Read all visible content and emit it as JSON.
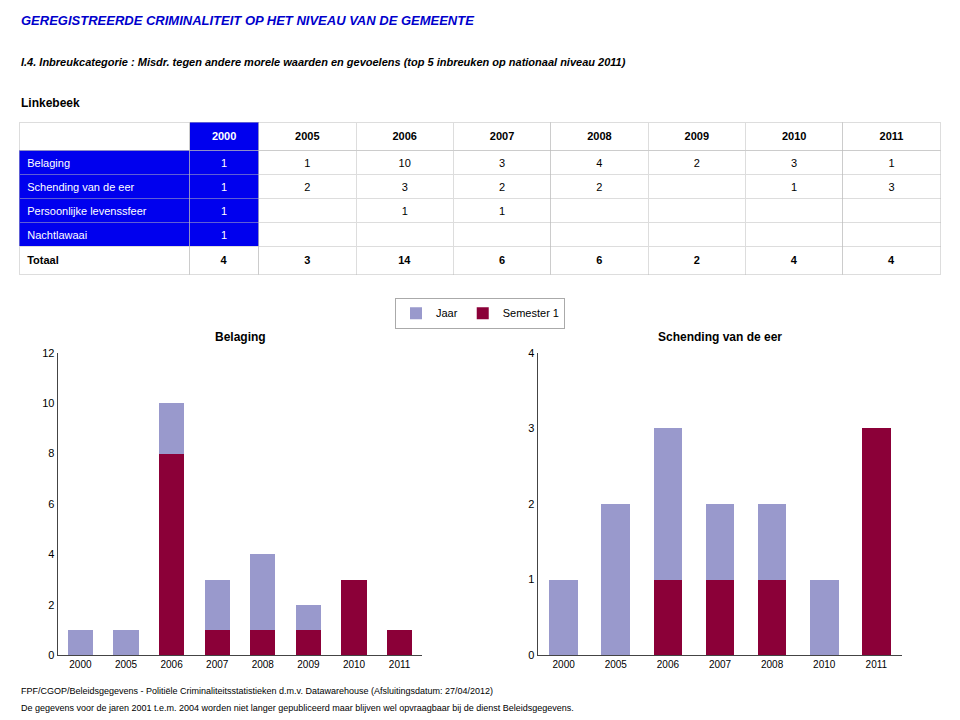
{
  "title": "GEREGISTREERDE CRIMINALITEIT OP HET NIVEAU VAN DE GEMEENTE",
  "subtitle": "I.4. Inbreukcategorie : Misdr. tegen andere morele waarden en gevoelens (top 5 inbreuken op nationaal niveau 2011)",
  "location": "Linkebeek",
  "table": {
    "rows": [
      "Belaging",
      "Schending van de eer",
      "Persoonlijke levenssfeer",
      "Nachtlawaai",
      "Totaal"
    ],
    "cols": [
      "2000",
      "2005",
      "2006",
      "2007",
      "2008",
      "2009",
      "2010",
      "2011"
    ],
    "values": [
      [
        1,
        1,
        10,
        3,
        4,
        2,
        3,
        1
      ],
      [
        1,
        2,
        3,
        2,
        2,
        null,
        1,
        3
      ],
      [
        1,
        null,
        1,
        1,
        null,
        null,
        null,
        null
      ],
      [
        1,
        null,
        null,
        null,
        null,
        null,
        null,
        null
      ],
      [
        4,
        3,
        14,
        6,
        6,
        2,
        4,
        4
      ]
    ],
    "color": "#0000ee"
  },
  "chart_data": [
    {
      "type": "bar",
      "title": "Belaging",
      "categories": [
        "2000",
        "2005",
        "2006",
        "2007",
        "2008",
        "2009",
        "2010",
        "2011"
      ],
      "series": [
        {
          "name": "Semester 1",
          "color": "#8b0038",
          "values": [
            0,
            0,
            8,
            1,
            1,
            1,
            3,
            1
          ]
        },
        {
          "name": "Jaar",
          "color": "#9999cc",
          "values": [
            1,
            1,
            2,
            2,
            3,
            1,
            0,
            0
          ]
        }
      ],
      "stacked": true,
      "ylim": [
        0,
        12
      ],
      "yticks": [
        0,
        2,
        4,
        6,
        8,
        10,
        12
      ],
      "grid": false,
      "legend": "top"
    },
    {
      "type": "bar",
      "title": "Schending van de eer",
      "categories": [
        "2000",
        "2005",
        "2006",
        "2007",
        "2008",
        "2010",
        "2011"
      ],
      "series": [
        {
          "name": "Semester 1",
          "color": "#8b0038",
          "values": [
            0,
            0,
            1,
            1,
            1,
            0,
            3
          ]
        },
        {
          "name": "Jaar",
          "color": "#9999cc",
          "values": [
            1,
            2,
            2,
            1,
            1,
            1,
            0
          ]
        }
      ],
      "stacked": true,
      "ylim": [
        0,
        4
      ],
      "yticks": [
        0,
        1,
        2,
        3,
        4
      ],
      "grid": false
    }
  ],
  "footer": [
    "FPF/CGOP/Beleidsgegevens - Politiële Criminaliteitsstatistieken d.m.v. Datawarehouse (Afsluitingsdatum: 27/04/2012)",
    "De gegevens voor de jaren 2001 t.e.m. 2004 worden niet langer gepubliceerd maar blijven wel opvraagbaar bij de dienst Beleidsgegevens."
  ]
}
